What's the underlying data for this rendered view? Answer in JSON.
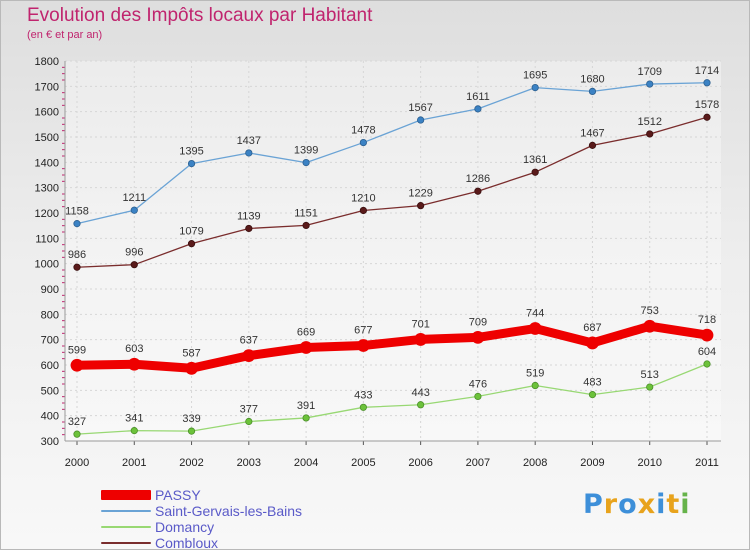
{
  "header": {
    "title": "Evolution des Impôts locaux par Habitant",
    "subtitle": "(en € et par an)"
  },
  "logo": {
    "text": "Proxiti",
    "colors": [
      "#3d8fd9",
      "#e8a31c",
      "#3d8fd9",
      "#e8a31c",
      "#3d8fd9",
      "#e8a31c",
      "#66b34a"
    ]
  },
  "chart_data": {
    "type": "line",
    "categories": [
      "2000",
      "2001",
      "2002",
      "2003",
      "2004",
      "2005",
      "2006",
      "2007",
      "2008",
      "2009",
      "2010",
      "2011"
    ],
    "ylim": [
      300,
      1800
    ],
    "yticks": [
      300,
      400,
      500,
      600,
      700,
      800,
      900,
      1000,
      1100,
      1200,
      1300,
      1400,
      1500,
      1600,
      1700,
      1800
    ],
    "grid": true,
    "legend_placement": "bottom-left",
    "series": [
      {
        "name": "PASSY",
        "color": "#ee0000",
        "values": [
          599,
          603,
          587,
          637,
          669,
          677,
          701,
          709,
          744,
          687,
          753,
          718
        ]
      },
      {
        "name": "Saint-Gervais-les-Bains",
        "color": "#6aa3d5",
        "values": [
          1158,
          1211,
          1395,
          1437,
          1399,
          1478,
          1567,
          1611,
          1695,
          1680,
          1709,
          1714
        ]
      },
      {
        "name": "Domancy",
        "color": "#98d873",
        "values": [
          327,
          341,
          339,
          377,
          391,
          433,
          443,
          476,
          519,
          483,
          513,
          604
        ]
      },
      {
        "name": "Combloux",
        "color": "#7a2d2d",
        "values": [
          986,
          996,
          1079,
          1139,
          1151,
          1210,
          1229,
          1286,
          1361,
          1467,
          1512,
          1578
        ]
      }
    ]
  }
}
